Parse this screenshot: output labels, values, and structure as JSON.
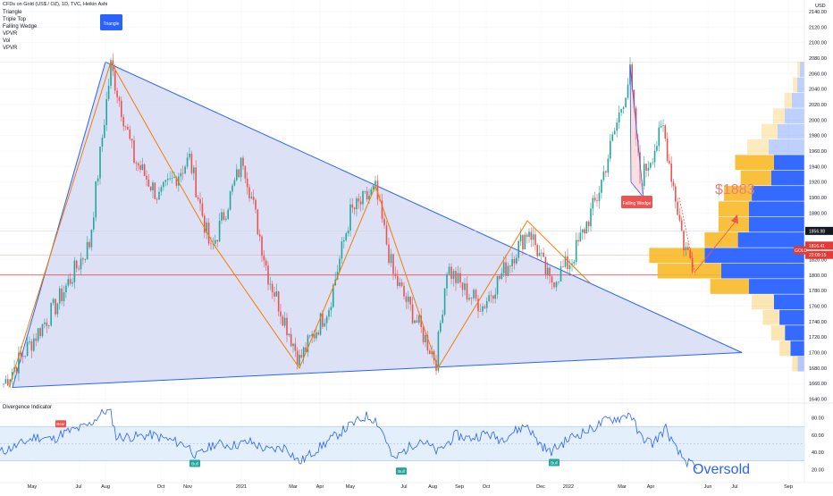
{
  "header": {
    "title": "CFDs on Gold (US$ / OZ), 1D, TVC, Heikin Ashi",
    "indicators": [
      "Triangle",
      "Triple Top",
      "Falling Wedge",
      "VPVR",
      "Vol",
      "VPVR"
    ]
  },
  "colors": {
    "up": "#26a69a",
    "down": "#ef5350",
    "triangle_fill": "#d6dcf5",
    "triangle_line": "#2962ff",
    "zigzag": "#f57c00",
    "vp_up": "#2962ff",
    "vp_down": "#f7b928",
    "rsi_line": "#2962ff",
    "rsi_band": "#e3f0fb",
    "h_line": "#e53935",
    "label_blue": "#2962ff",
    "label_red": "#ef5350",
    "bull_label": "#26a69a"
  },
  "labels": {
    "triangle": "Triangle",
    "falling_wedge": "Falling Wedge",
    "target": "$1883",
    "oversold": "Oversold",
    "bear": "Bear",
    "bull": "Bull"
  },
  "price_tags": {
    "symbol": "GOLD",
    "tag1": "1856.98",
    "tag2": "1816.41",
    "tag3": "22:09:15",
    "currency": "USD"
  },
  "chart_data": [
    {
      "type": "candlestick",
      "title": "CFDs on Gold (US$ / OZ), 1D, TVC, Heikin Ashi",
      "ylabel": "USD",
      "y_ticks": [
        1640,
        1660,
        1680,
        1700,
        1720,
        1740,
        1760,
        1780,
        1800,
        1820,
        1840,
        1860,
        1880,
        1900,
        1920,
        1940,
        1960,
        1980,
        2000,
        2020,
        2040,
        2060,
        2080,
        2100,
        2120,
        2140
      ],
      "ylim": [
        1636,
        2148
      ],
      "x_ticks": [
        "May",
        "Jul",
        "Aug",
        "Oct",
        "Nov",
        "2021",
        "Mar",
        "Apr",
        "May",
        "Jul",
        "Aug",
        "Sep",
        "Oct",
        "Dec",
        "2022",
        "Mar",
        "Apr",
        "Jun",
        "Jul",
        "Sep"
      ],
      "price_path_keypoints": [
        {
          "x": "Apr 2020",
          "y": 1660
        },
        {
          "x": "Jun 2020",
          "y": 1760
        },
        {
          "x": "Jul 2020",
          "y": 1840
        },
        {
          "x": "Aug 2020",
          "y": 2070
        },
        {
          "x": "Sep 2020",
          "y": 1950
        },
        {
          "x": "Oct 2020",
          "y": 1900
        },
        {
          "x": "Nov 2020",
          "y": 1950
        },
        {
          "x": "Dec 2020",
          "y": 1830
        },
        {
          "x": "Jan 2021",
          "y": 1950
        },
        {
          "x": "Feb 2021",
          "y": 1800
        },
        {
          "x": "Mar 2021",
          "y": 1690
        },
        {
          "x": "Apr 2021",
          "y": 1760
        },
        {
          "x": "May 2021",
          "y": 1880
        },
        {
          "x": "Jun 2021",
          "y": 1910
        },
        {
          "x": "Jul 2021",
          "y": 1800
        },
        {
          "x": "Aug 2021",
          "y": 1690
        },
        {
          "x": "Aug 2021",
          "y": 1810
        },
        {
          "x": "Sep 2021",
          "y": 1780
        },
        {
          "x": "Oct 2021",
          "y": 1760
        },
        {
          "x": "Nov 2021",
          "y": 1860
        },
        {
          "x": "Dec 2021",
          "y": 1790
        },
        {
          "x": "Jan 2022",
          "y": 1820
        },
        {
          "x": "Feb 2022",
          "y": 1900
        },
        {
          "x": "Mar 2022",
          "y": 2060
        },
        {
          "x": "Mar 2022",
          "y": 1920
        },
        {
          "x": "Apr 2022",
          "y": 1990
        },
        {
          "x": "May 2022",
          "y": 1840
        },
        {
          "x": "May 2022",
          "y": 1810
        }
      ],
      "patterns": {
        "triangle": [
          {
            "x": "Apr 2020",
            "y": 1655
          },
          {
            "x": "Aug 2020",
            "y": 2075
          },
          {
            "x": "Jun 2022",
            "y": 1700
          }
        ],
        "target": {
          "x": "Jun 2022",
          "y": 1883
        },
        "horizontal_level": 1800
      },
      "volume_profile": [
        {
          "price": 1945,
          "up": 0.7,
          "down": 0.55
        },
        {
          "price": 1925,
          "up": 0.55,
          "down": 0.6
        },
        {
          "price": 1905,
          "up": 0.5,
          "down": 0.95
        },
        {
          "price": 1885,
          "up": 0.55,
          "down": 1.0
        },
        {
          "price": 1865,
          "up": 0.55,
          "down": 1.0
        },
        {
          "price": 1845,
          "up": 0.6,
          "down": 1.2
        },
        {
          "price": 1825,
          "up": 1.0,
          "down": 1.8
        },
        {
          "price": 1805,
          "up": 1.15,
          "down": 1.5
        },
        {
          "price": 1785,
          "up": 0.7,
          "down": 1.0
        },
        {
          "price": 1765,
          "up": 0.4,
          "down": 0.55
        },
        {
          "price": 1745,
          "up": 0.3,
          "down": 0.45
        },
        {
          "price": 1725,
          "up": 0.25,
          "down": 0.35
        },
        {
          "price": 1705,
          "up": 0.2,
          "down": 0.25
        },
        {
          "price": 1685,
          "up": 0.1,
          "down": 0.12
        }
      ]
    },
    {
      "type": "line",
      "title": "Divergence Indicator",
      "y_ticks": [
        20,
        40,
        60,
        80
      ],
      "ylim": [
        13,
        92
      ],
      "band": [
        30,
        70
      ],
      "midline": 50,
      "annotations": [
        {
          "text": "Bear",
          "x": "Jun 2020"
        },
        {
          "text": "Bull",
          "x": "Dec 2020"
        },
        {
          "text": "Bull",
          "x": "Mar 2021"
        },
        {
          "text": "Bull",
          "x": "Jan 2022"
        },
        {
          "text": "Oversold",
          "x": "May 2022"
        }
      ]
    }
  ]
}
